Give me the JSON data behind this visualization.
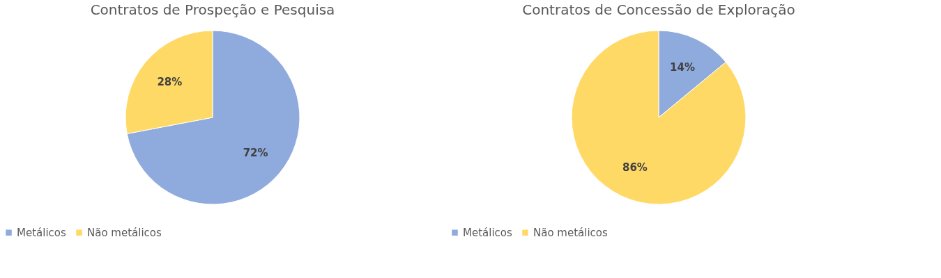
{
  "chart_data": [
    {
      "type": "pie",
      "title": "Contratos de Prospeção e Pesquisa",
      "categories": [
        "Metálicos",
        "Não metálicos"
      ],
      "values": [
        72,
        28
      ],
      "colors": [
        "#8faadc",
        "#ffd966"
      ],
      "value_labels": [
        "72%",
        "28%"
      ],
      "legend": "bottom"
    },
    {
      "type": "pie",
      "title": "Contratos de Concessão de Exploração",
      "categories": [
        "Metálicos",
        "Não metálicos"
      ],
      "values": [
        14,
        86
      ],
      "colors": [
        "#8faadc",
        "#ffd966"
      ],
      "value_labels": [
        "14%",
        "86%"
      ],
      "legend": "bottom"
    }
  ]
}
